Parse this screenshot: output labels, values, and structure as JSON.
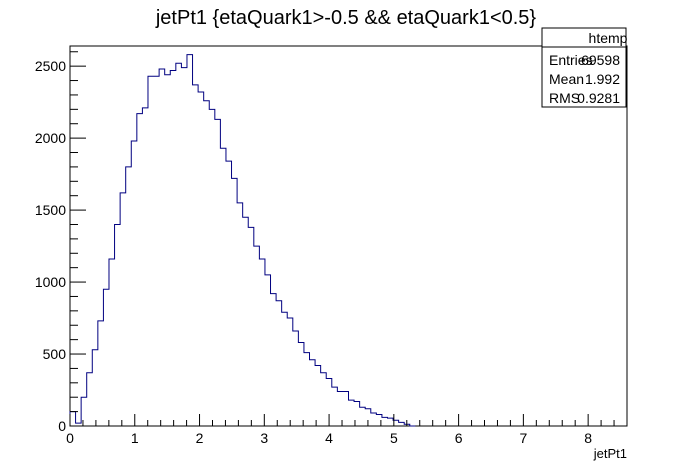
{
  "chart_data": {
    "type": "bar",
    "title": "jetPt1 {etaQuark1>-0.5 && etaQuark1<0.5}",
    "xlabel": "jetPt1",
    "ylabel": "",
    "xlim": [
      0,
      8.6
    ],
    "ylim": [
      0,
      2640
    ],
    "xticks": [
      0,
      1,
      2,
      3,
      4,
      5,
      6,
      7,
      8
    ],
    "yticks": [
      0,
      500,
      1000,
      1500,
      2000,
      2500
    ],
    "bin_width": 0.086,
    "histogram_color": "#000080",
    "values": [
      100,
      20,
      200,
      370,
      530,
      730,
      950,
      1160,
      1400,
      1620,
      1800,
      1980,
      2170,
      2210,
      2430,
      2430,
      2480,
      2440,
      2470,
      2520,
      2490,
      2580,
      2370,
      2320,
      2260,
      2200,
      2130,
      1930,
      1840,
      1720,
      1550,
      1450,
      1380,
      1250,
      1160,
      1050,
      920,
      870,
      790,
      750,
      660,
      580,
      510,
      460,
      420,
      370,
      330,
      270,
      240,
      240,
      180,
      170,
      130,
      120,
      90,
      80,
      60,
      55,
      40,
      25,
      12,
      0
    ]
  },
  "stats_box": {
    "name": "htemp",
    "rows": [
      {
        "label": "Entries",
        "value": "69598"
      },
      {
        "label": "Mean",
        "value": "1.992"
      },
      {
        "label": "RMS",
        "value": "0.9281"
      }
    ]
  }
}
